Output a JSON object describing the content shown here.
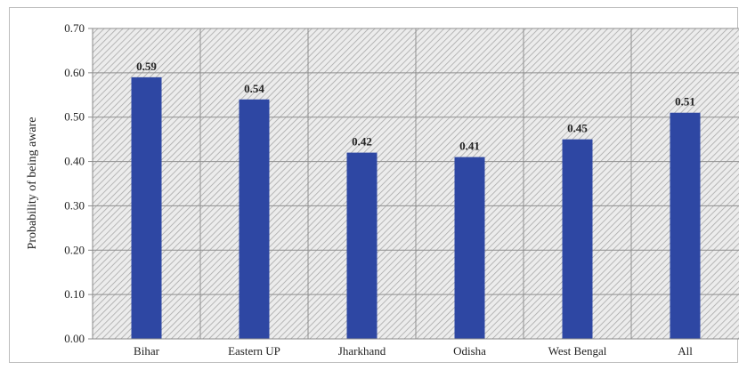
{
  "chart_data": {
    "type": "bar",
    "categories": [
      "Bihar",
      "Eastern UP",
      "Jharkhand",
      "Odisha",
      "West Bengal",
      "All"
    ],
    "values": [
      0.59,
      0.54,
      0.42,
      0.41,
      0.45,
      0.51
    ],
    "data_labels": [
      "0.59",
      "0.54",
      "0.42",
      "0.41",
      "0.45",
      "0.51"
    ],
    "title": "",
    "xlabel": "",
    "ylabel": "Probability of being aware",
    "ylim": [
      0,
      0.7
    ],
    "yticks": [
      0.0,
      0.1,
      0.2,
      0.3,
      0.4,
      0.5,
      0.6,
      0.7
    ],
    "ytick_labels": [
      "0.00",
      "0.10",
      "0.20",
      "0.30",
      "0.40",
      "0.50",
      "0.60",
      "0.70"
    ],
    "grid": true,
    "legend": "none",
    "bar_color": "#2e47a3",
    "plot_background": "hatched-gray"
  }
}
